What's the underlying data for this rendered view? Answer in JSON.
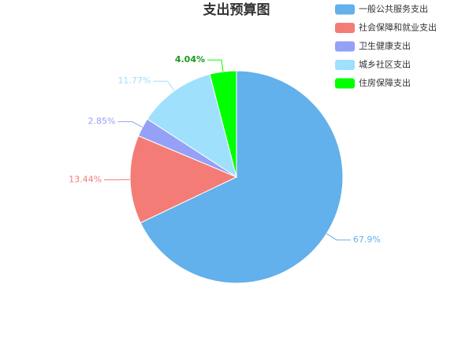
{
  "chart_data": {
    "type": "pie",
    "title": "支出预算图",
    "categories": [
      "一般公共服务支出",
      "社会保障和就业支出",
      "卫生健康支出",
      "城乡社区支出",
      "住房保障支出"
    ],
    "values": [
      67.9,
      13.44,
      2.85,
      11.77,
      4.04
    ],
    "value_labels": [
      "67.9%",
      "13.44%",
      "2.85%",
      "11.77%",
      "4.04%"
    ],
    "colors": [
      "#62b0ec",
      "#f47c76",
      "#95a0f7",
      "#9fe0fd",
      "#00ff00"
    ],
    "legend": "top-right"
  }
}
